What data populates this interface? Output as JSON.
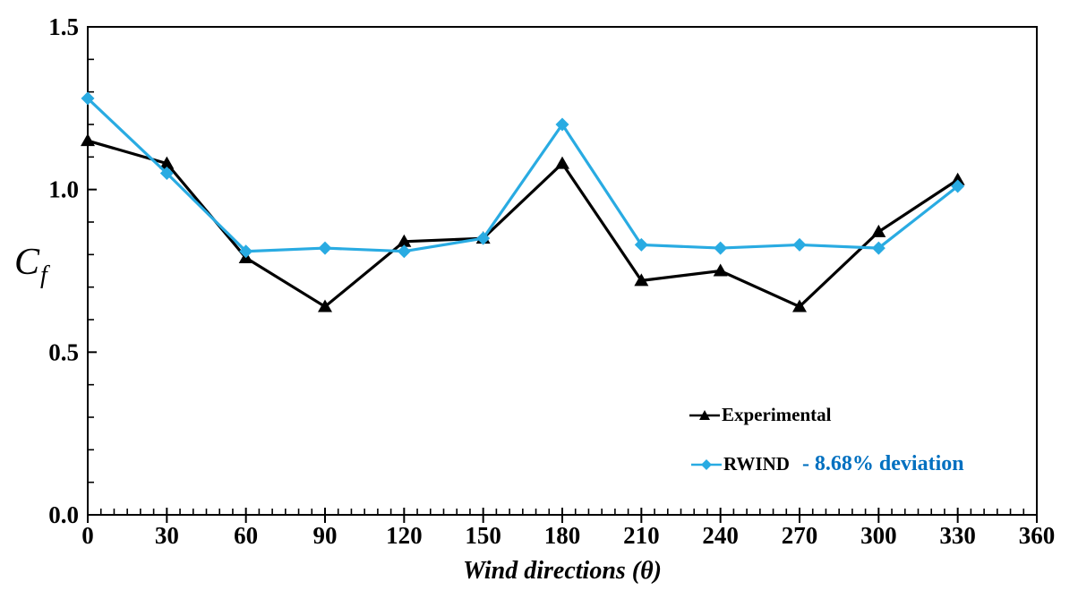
{
  "chart_data": {
    "type": "line",
    "title": "",
    "xlabel": "Wind directions (θ)",
    "ylabel": "Cf",
    "x": [
      0,
      30,
      60,
      90,
      120,
      150,
      180,
      210,
      240,
      270,
      300,
      330
    ],
    "series": [
      {
        "name": "Experimental",
        "marker": "triangle",
        "color": "#000000",
        "values": [
          1.15,
          1.08,
          0.79,
          0.64,
          0.84,
          0.85,
          1.08,
          0.72,
          0.75,
          0.64,
          0.87,
          1.03
        ]
      },
      {
        "name": "RWIND",
        "marker": "diamond",
        "color": "#29ABE2",
        "values": [
          1.28,
          1.05,
          0.81,
          0.82,
          0.81,
          0.85,
          1.2,
          0.83,
          0.82,
          0.83,
          0.82,
          1.01
        ],
        "annotation": "- 8.68% deviation",
        "annotation_color": "#0070C0"
      }
    ],
    "xlim": [
      0,
      360
    ],
    "ylim": [
      0,
      1.5
    ],
    "x_major_ticks": [
      0,
      30,
      60,
      90,
      120,
      150,
      180,
      210,
      240,
      270,
      300,
      330,
      360
    ],
    "x_tick_labels": [
      "0",
      "30",
      "60",
      "90",
      "120",
      "150",
      "180",
      "210",
      "240",
      "270",
      "300",
      "330",
      "360"
    ],
    "x_minor_step": 5,
    "y_major_ticks": [
      0,
      0.5,
      1,
      1.5
    ],
    "y_tick_labels": [
      "0.0",
      "0.5",
      "1.0",
      "1.5"
    ],
    "y_minor_step": 0.1,
    "grid": false,
    "legend_position": "inside-right",
    "plot_border": true
  },
  "axis": {
    "x_title": "Wind directions (θ)",
    "y_title_main": "C",
    "y_title_sub": "f"
  },
  "legend": {
    "experimental_label": "Experimental",
    "rwind_label": "RWIND",
    "rwind_deviation": "- 8.68% deviation"
  },
  "colors": {
    "axis": "#000000",
    "experimental": "#000000",
    "rwind_line": "#29ABE2",
    "deviation_text": "#0070C0",
    "background": "#FFFFFF"
  }
}
